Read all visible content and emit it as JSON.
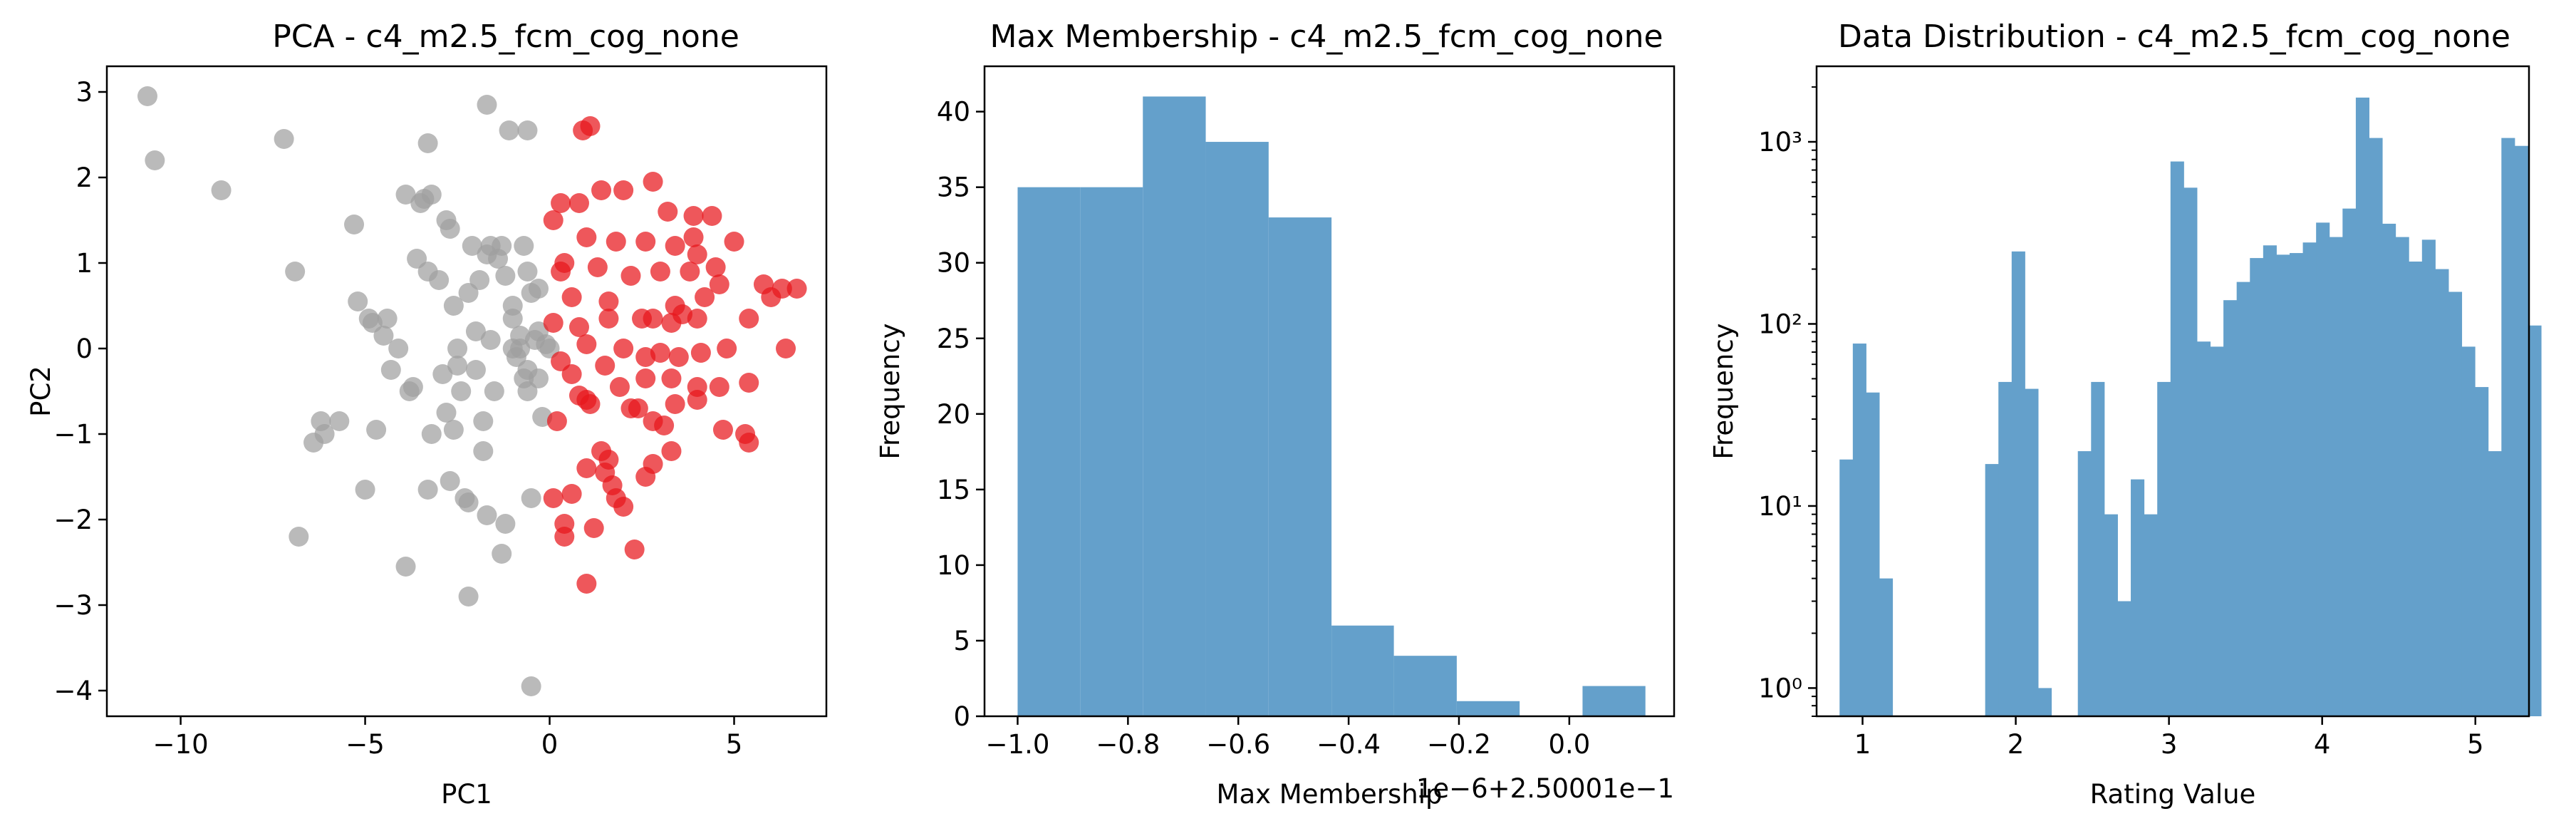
{
  "chart_data": [
    {
      "type": "scatter",
      "title": "PCA - c4_m2.5_fcm_cog_none",
      "xlabel": "PC1",
      "ylabel": "PC2",
      "xlim": [
        -12,
        7.5
      ],
      "ylim": [
        -4.3,
        3.3
      ],
      "xticks": [
        -10,
        -5,
        0,
        5
      ],
      "yticks": [
        -4,
        -3,
        -2,
        -1,
        0,
        1,
        2,
        3
      ],
      "colors": {
        "gray": "#a0a0a0",
        "red": "#e8161c"
      },
      "points": {
        "gray": [
          [
            -10.9,
            2.95
          ],
          [
            -10.7,
            2.2
          ],
          [
            -8.9,
            1.85
          ],
          [
            -7.2,
            2.45
          ],
          [
            -6.9,
            0.9
          ],
          [
            -6.8,
            -2.2
          ],
          [
            -6.4,
            -1.1
          ],
          [
            -6.2,
            -0.85
          ],
          [
            -6.1,
            -1.0
          ],
          [
            -5.7,
            -0.85
          ],
          [
            -5.3,
            1.45
          ],
          [
            -5.2,
            0.55
          ],
          [
            -5.0,
            -1.65
          ],
          [
            -4.9,
            0.35
          ],
          [
            -4.8,
            0.3
          ],
          [
            -4.7,
            -0.95
          ],
          [
            -4.5,
            0.15
          ],
          [
            -4.4,
            0.35
          ],
          [
            -4.3,
            -0.25
          ],
          [
            -4.1,
            0.0
          ],
          [
            -3.9,
            1.8
          ],
          [
            -3.9,
            -2.55
          ],
          [
            -3.8,
            -0.5
          ],
          [
            -3.7,
            -0.45
          ],
          [
            -3.6,
            1.05
          ],
          [
            -3.5,
            1.7
          ],
          [
            -3.4,
            1.75
          ],
          [
            -3.3,
            0.9
          ],
          [
            -3.3,
            2.4
          ],
          [
            -3.3,
            -1.65
          ],
          [
            -3.2,
            1.8
          ],
          [
            -3.2,
            -1.0
          ],
          [
            -3.0,
            0.8
          ],
          [
            -2.9,
            -0.3
          ],
          [
            -2.8,
            1.5
          ],
          [
            -2.8,
            -0.75
          ],
          [
            -2.7,
            1.4
          ],
          [
            -2.7,
            -1.55
          ],
          [
            -2.6,
            0.5
          ],
          [
            -2.6,
            -0.95
          ],
          [
            -2.5,
            -0.2
          ],
          [
            -2.5,
            0.0
          ],
          [
            -2.4,
            -0.5
          ],
          [
            -2.3,
            -1.75
          ],
          [
            -2.2,
            -1.8
          ],
          [
            -2.2,
            -2.9
          ],
          [
            -2.2,
            0.65
          ],
          [
            -2.1,
            1.2
          ],
          [
            -2.0,
            0.2
          ],
          [
            -2.0,
            -0.25
          ],
          [
            -1.9,
            0.8
          ],
          [
            -1.8,
            -0.85
          ],
          [
            -1.8,
            -1.2
          ],
          [
            -1.7,
            1.1
          ],
          [
            -1.7,
            2.85
          ],
          [
            -1.7,
            -1.95
          ],
          [
            -1.6,
            1.2
          ],
          [
            -1.6,
            0.1
          ],
          [
            -1.5,
            -0.5
          ],
          [
            -1.4,
            1.05
          ],
          [
            -1.3,
            -2.4
          ],
          [
            -1.3,
            1.2
          ],
          [
            -1.2,
            -2.05
          ],
          [
            -1.2,
            0.85
          ],
          [
            -1.1,
            2.55
          ],
          [
            -1.0,
            0.5
          ],
          [
            -1.0,
            0.0
          ],
          [
            -0.9,
            -0.1
          ],
          [
            -0.8,
            0.0
          ],
          [
            -0.8,
            0.15
          ],
          [
            -0.7,
            1.2
          ],
          [
            -0.7,
            -0.35
          ],
          [
            -0.6,
            2.55
          ],
          [
            -0.6,
            0.9
          ],
          [
            -0.6,
            -0.5
          ],
          [
            -0.5,
            0.65
          ],
          [
            -0.5,
            -1.75
          ],
          [
            -0.5,
            -3.95
          ],
          [
            -0.4,
            0.1
          ],
          [
            -0.3,
            0.7
          ],
          [
            -0.3,
            -0.35
          ],
          [
            -0.2,
            -0.8
          ],
          [
            -0.1,
            0.05
          ],
          [
            0.0,
            0.0
          ],
          [
            -0.3,
            0.2
          ],
          [
            -0.6,
            -0.25
          ],
          [
            -1.0,
            0.35
          ]
        ],
        "red": [
          [
            0.9,
            2.55
          ],
          [
            1.1,
            2.6
          ],
          [
            2.8,
            1.95
          ],
          [
            1.4,
            1.85
          ],
          [
            2.0,
            1.85
          ],
          [
            3.2,
            1.6
          ],
          [
            3.9,
            1.55
          ],
          [
            4.4,
            1.55
          ],
          [
            0.3,
            1.7
          ],
          [
            0.8,
            1.7
          ],
          [
            5.0,
            1.25
          ],
          [
            1.0,
            1.3
          ],
          [
            0.1,
            1.5
          ],
          [
            1.8,
            1.25
          ],
          [
            0.4,
            1.0
          ],
          [
            2.6,
            1.25
          ],
          [
            3.4,
            1.2
          ],
          [
            3.9,
            1.3
          ],
          [
            4.0,
            1.1
          ],
          [
            4.5,
            0.95
          ],
          [
            0.3,
            0.9
          ],
          [
            1.3,
            0.95
          ],
          [
            2.2,
            0.85
          ],
          [
            3.0,
            0.9
          ],
          [
            3.8,
            0.9
          ],
          [
            4.6,
            0.75
          ],
          [
            5.8,
            0.75
          ],
          [
            6.3,
            0.7
          ],
          [
            6.7,
            0.7
          ],
          [
            0.6,
            0.6
          ],
          [
            1.6,
            0.55
          ],
          [
            2.5,
            0.35
          ],
          [
            3.4,
            0.5
          ],
          [
            4.0,
            0.35
          ],
          [
            5.4,
            0.35
          ],
          [
            6.0,
            0.6
          ],
          [
            0.1,
            0.3
          ],
          [
            0.8,
            0.25
          ],
          [
            1.6,
            0.35
          ],
          [
            2.8,
            0.35
          ],
          [
            3.3,
            0.3
          ],
          [
            3.6,
            0.4
          ],
          [
            4.2,
            0.6
          ],
          [
            1.0,
            0.05
          ],
          [
            2.0,
            0.0
          ],
          [
            2.6,
            -0.1
          ],
          [
            3.0,
            -0.05
          ],
          [
            3.5,
            -0.1
          ],
          [
            4.1,
            -0.05
          ],
          [
            4.8,
            0.0
          ],
          [
            6.4,
            0.0
          ],
          [
            0.3,
            -0.15
          ],
          [
            0.6,
            -0.3
          ],
          [
            0.8,
            -0.55
          ],
          [
            1.5,
            -0.2
          ],
          [
            1.9,
            -0.45
          ],
          [
            2.6,
            -0.35
          ],
          [
            3.3,
            -0.35
          ],
          [
            4.0,
            -0.45
          ],
          [
            4.6,
            -0.45
          ],
          [
            5.4,
            -0.4
          ],
          [
            0.2,
            -0.85
          ],
          [
            1.0,
            -0.6
          ],
          [
            1.1,
            -0.65
          ],
          [
            1.4,
            -1.2
          ],
          [
            1.6,
            -1.3
          ],
          [
            2.2,
            -0.7
          ],
          [
            2.4,
            -0.7
          ],
          [
            2.8,
            -0.85
          ],
          [
            3.1,
            -0.9
          ],
          [
            3.4,
            -0.65
          ],
          [
            4.0,
            -0.6
          ],
          [
            4.7,
            -0.95
          ],
          [
            5.3,
            -1.0
          ],
          [
            5.4,
            -1.1
          ],
          [
            0.1,
            -1.75
          ],
          [
            0.6,
            -1.7
          ],
          [
            1.0,
            -1.4
          ],
          [
            1.5,
            -1.45
          ],
          [
            1.7,
            -1.6
          ],
          [
            1.8,
            -1.75
          ],
          [
            2.0,
            -1.85
          ],
          [
            2.6,
            -1.5
          ],
          [
            2.8,
            -1.35
          ],
          [
            3.3,
            -1.2
          ],
          [
            0.4,
            -2.05
          ],
          [
            0.4,
            -2.2
          ],
          [
            1.2,
            -2.1
          ],
          [
            2.3,
            -2.35
          ],
          [
            1.0,
            -2.75
          ]
        ]
      }
    },
    {
      "type": "bar",
      "title": "Max Membership - c4_m2.5_fcm_cog_none",
      "xlabel": "Max Membership",
      "ylabel": "Frequency",
      "offset_text": "1e−6+2.50001e−1",
      "xlim": [
        -1.06,
        0.19
      ],
      "ylim": [
        0,
        43
      ],
      "xticks": [
        -1.0,
        -0.8,
        -0.6,
        -0.4,
        -0.2,
        0.0
      ],
      "xtick_labels": [
        "−1.0",
        "−0.8",
        "−0.6",
        "−0.4",
        "−0.2",
        "0.0"
      ],
      "yticks": [
        0,
        5,
        10,
        15,
        20,
        25,
        30,
        35,
        40
      ],
      "color": "#64a0cb",
      "bins": [
        [
          -1.0,
          -0.886,
          35
        ],
        [
          -0.886,
          -0.773,
          35
        ],
        [
          -0.773,
          -0.659,
          41
        ],
        [
          -0.659,
          -0.545,
          38
        ],
        [
          -0.545,
          -0.431,
          33
        ],
        [
          -0.431,
          -0.318,
          6
        ],
        [
          -0.318,
          -0.204,
          4
        ],
        [
          -0.204,
          -0.09,
          1
        ],
        [
          -0.09,
          0.024,
          0
        ],
        [
          0.024,
          0.138,
          2
        ]
      ]
    },
    {
      "type": "bar",
      "title": "Data Distribution - c4_m2.5_fcm_cog_none",
      "xlabel": "Rating Value",
      "ylabel": "Frequency",
      "yscale": "log",
      "xlim": [
        0.7,
        5.35
      ],
      "ylim": [
        0.7,
        2600
      ],
      "xticks": [
        1,
        2,
        3,
        4,
        5
      ],
      "yticks_log": [
        1,
        10,
        100,
        1000
      ],
      "ytick_labels": [
        "10⁰",
        "10¹",
        "10²",
        "10³"
      ],
      "color": "#64a0cb",
      "bin_start": 0.85,
      "bin_width": 0.0864,
      "values": [
        18,
        78,
        42,
        4,
        0,
        0,
        0,
        0,
        0,
        0,
        0,
        17,
        48,
        250,
        44,
        1,
        0,
        0,
        20,
        48,
        9,
        3,
        14,
        9,
        48,
        780,
        560,
        80,
        75,
        135,
        170,
        230,
        270,
        240,
        245,
        280,
        360,
        300,
        430,
        1750,
        1050,
        355,
        300,
        220,
        290,
        200,
        150,
        75,
        45,
        20,
        1050,
        950,
        98
      ]
    }
  ]
}
